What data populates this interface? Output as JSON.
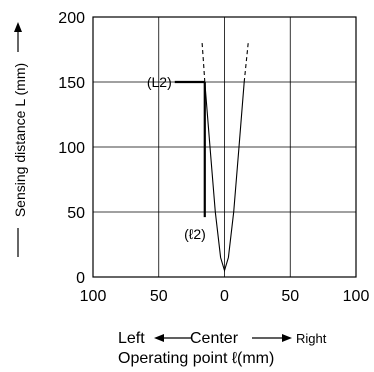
{
  "chart_data": {
    "type": "line",
    "ylabel": "Sensing distance L (mm)",
    "xlabel": "Operating point ℓ(mm)",
    "x_direction": {
      "left": "Left",
      "center": "Center",
      "right": "Right"
    },
    "xlim": [
      -100,
      100
    ],
    "ylim": [
      0,
      200
    ],
    "x_ticks": [
      -100,
      -50,
      0,
      50,
      100
    ],
    "x_tick_labels": [
      "100",
      "50",
      "0",
      "50",
      "100"
    ],
    "y_ticks": [
      0,
      50,
      100,
      150,
      200
    ],
    "y_tick_labels": [
      "0",
      "50",
      "100",
      "150",
      "200"
    ],
    "grid": true,
    "series": [
      {
        "style": "solid",
        "x": [
          -15,
          -11,
          -7,
          -3,
          0,
          3,
          7,
          11,
          15
        ],
        "y": [
          150,
          100,
          50,
          15,
          5,
          15,
          50,
          100,
          150
        ]
      },
      {
        "style": "dashed",
        "x": [
          -15,
          -16,
          -17
        ],
        "y": [
          150,
          165,
          180
        ]
      },
      {
        "style": "dashed",
        "x": [
          15,
          16.5,
          18
        ],
        "y": [
          150,
          165,
          180
        ]
      }
    ],
    "annotations": [
      {
        "text": "(L2)",
        "x": -15,
        "y": 150
      },
      {
        "text": "(ℓ2)",
        "x": -15,
        "y": 43
      }
    ]
  }
}
